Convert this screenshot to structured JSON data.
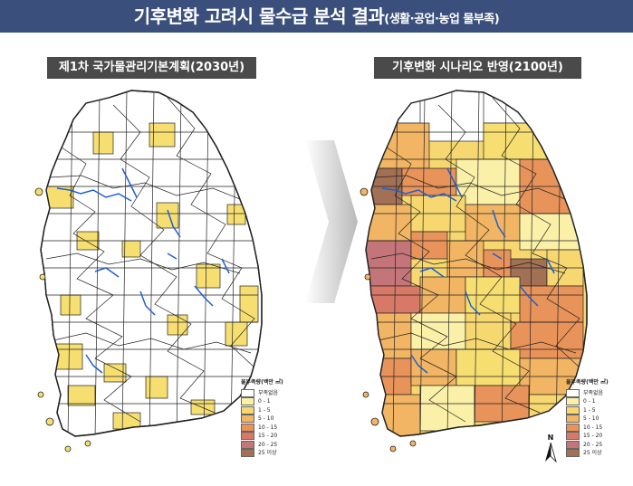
{
  "header": {
    "title": "기후변화 고려시 물수급 분석 결과",
    "subtitle": "(생활·공업·농업 물부족)",
    "bg_color": "#3a4f7c"
  },
  "panels": [
    {
      "label": "제1차 국가물관리기본계획(2030년)"
    },
    {
      "label": "기후변화 시나리오 반영(2100년)"
    }
  ],
  "legend": {
    "title": "물부족량(백만 ㎥)",
    "items": [
      {
        "label": "부족없음",
        "color": "#ffffff"
      },
      {
        "label": "0 - 1",
        "color": "#fbf0a8"
      },
      {
        "label": "1 - 5",
        "color": "#f7d870"
      },
      {
        "label": "5 - 10",
        "color": "#f1b563"
      },
      {
        "label": "10 - 15",
        "color": "#e8935a"
      },
      {
        "label": "15 - 20",
        "color": "#d87968"
      },
      {
        "label": "20 - 25",
        "color": "#c4757a"
      },
      {
        "label": "25 이상",
        "color": "#a27055"
      }
    ]
  },
  "north_arrow": {
    "label": "N"
  },
  "arrow_icon": "chevron-right-arrow"
}
